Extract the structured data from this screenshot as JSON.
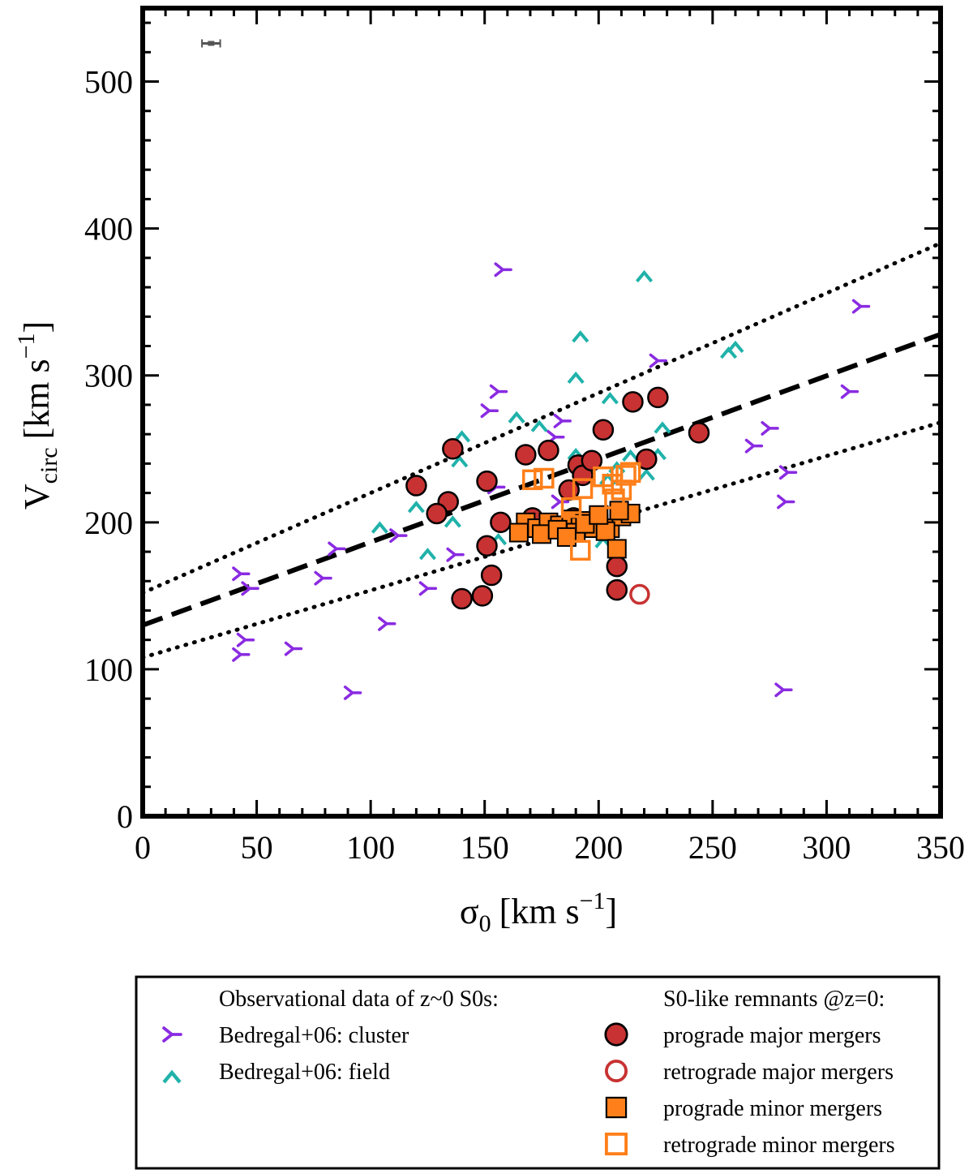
{
  "chart_data": {
    "type": "scatter",
    "xlabel": "σ0 [km s−1]",
    "ylabel": "Vcirc [km s−1]",
    "xlim": [
      0,
      350
    ],
    "ylim": [
      0,
      550
    ],
    "xticks": [
      "0",
      "50",
      "100",
      "150",
      "200",
      "250",
      "300",
      "350"
    ],
    "yticks": [
      "0",
      "100",
      "200",
      "300",
      "400",
      "500"
    ],
    "grid": false,
    "legend_position": "below",
    "lines": [
      {
        "name": "fit",
        "style": "dashed",
        "x": [
          0,
          350
        ],
        "y": [
          130,
          328
        ]
      },
      {
        "name": "fit+1sigma",
        "style": "dotted",
        "x": [
          0,
          350
        ],
        "y": [
          152,
          390
        ]
      },
      {
        "name": "fit-1sigma",
        "style": "dotted",
        "x": [
          0,
          350
        ],
        "y": [
          108,
          268
        ]
      }
    ],
    "error_bar": {
      "x": 30,
      "y": 526,
      "xerr": 4
    },
    "legend": {
      "left_header": "Observational data of z~0 S0s:",
      "right_header": "S0-like remnants @z=0:",
      "entries": [
        {
          "key": "cluster",
          "label": "Bedregal+06: cluster"
        },
        {
          "key": "field",
          "label": "Bedregal+06: field"
        },
        {
          "key": "pro_major",
          "label": "prograde major mergers"
        },
        {
          "key": "retro_major",
          "label": "retrograde major mergers"
        },
        {
          "key": "pro_minor",
          "label": "prograde minor mergers"
        },
        {
          "key": "retro_minor",
          "label": "retrograde minor mergers"
        }
      ]
    },
    "series": [
      {
        "name": "Bedregal+06: cluster",
        "key": "cluster",
        "marker": "tri",
        "color": "#8a2be2",
        "x": [
          158,
          156,
          152,
          43,
          47,
          85,
          79,
          112,
          137,
          125,
          107,
          66,
          92,
          45,
          43,
          184,
          181,
          155,
          183,
          226,
          315,
          310,
          275,
          268,
          283,
          282,
          281
        ],
        "y": [
          372,
          289,
          276,
          165,
          155,
          182,
          162,
          191,
          178,
          155,
          131,
          114,
          84,
          120,
          110,
          269,
          258,
          224,
          214,
          310,
          347,
          289,
          264,
          252,
          234,
          214,
          86
        ]
      },
      {
        "name": "Bedregal+06: field",
        "key": "field",
        "marker": "chevron",
        "color": "#20b2aa",
        "x": [
          220,
          192,
          190,
          260,
          257,
          205,
          164,
          174,
          140,
          139,
          120,
          104,
          125,
          136,
          156,
          190,
          228,
          226,
          204,
          208,
          221,
          202,
          214
        ],
        "y": [
          367,
          326,
          298,
          319,
          315,
          284,
          271,
          265,
          258,
          241,
          210,
          196,
          178,
          200,
          188,
          246,
          264,
          246,
          229,
          237,
          232,
          186,
          245
        ]
      },
      {
        "name": "prograde major mergers",
        "key": "pro_major",
        "marker": "circle-filled",
        "color": "#c83232",
        "x": [
          136,
          120,
          134,
          129,
          151,
          157,
          151,
          153,
          149,
          140,
          168,
          178,
          171,
          191,
          193,
          197,
          202,
          215,
          226,
          244,
          221,
          187,
          189,
          208,
          208
        ],
        "y": [
          250,
          225,
          214,
          206,
          228,
          200,
          184,
          164,
          150,
          148,
          246,
          249,
          203,
          239,
          232,
          242,
          263,
          282,
          285,
          261,
          243,
          222,
          203,
          170,
          154
        ]
      },
      {
        "name": "retrograde major mergers",
        "key": "retro_major",
        "marker": "circle-open",
        "color": "#c83232",
        "x": [
          218
        ],
        "y": [
          151
        ]
      },
      {
        "name": "prograde minor mergers",
        "key": "pro_minor",
        "marker": "square-filled",
        "color": "#ff7f1a",
        "x": [
          168,
          173,
          178,
          183,
          188,
          192,
          196,
          200,
          205,
          210,
          214,
          165,
          175,
          182,
          190,
          198,
          203,
          208,
          186,
          194,
          200,
          209
        ],
        "y": [
          200,
          196,
          200,
          198,
          202,
          197,
          201,
          199,
          196,
          204,
          206,
          193,
          192,
          195,
          193,
          196,
          194,
          182,
          190,
          199,
          205,
          208
        ]
      },
      {
        "name": "retrograde minor mergers",
        "key": "retro_minor",
        "marker": "square-open",
        "color": "#ff7f1a",
        "x": [
          171,
          176,
          193,
          202,
          206,
          210,
          212,
          214,
          207,
          188,
          192
        ],
        "y": [
          229,
          230,
          223,
          231,
          226,
          222,
          232,
          234,
          216,
          210,
          181
        ]
      }
    ]
  }
}
